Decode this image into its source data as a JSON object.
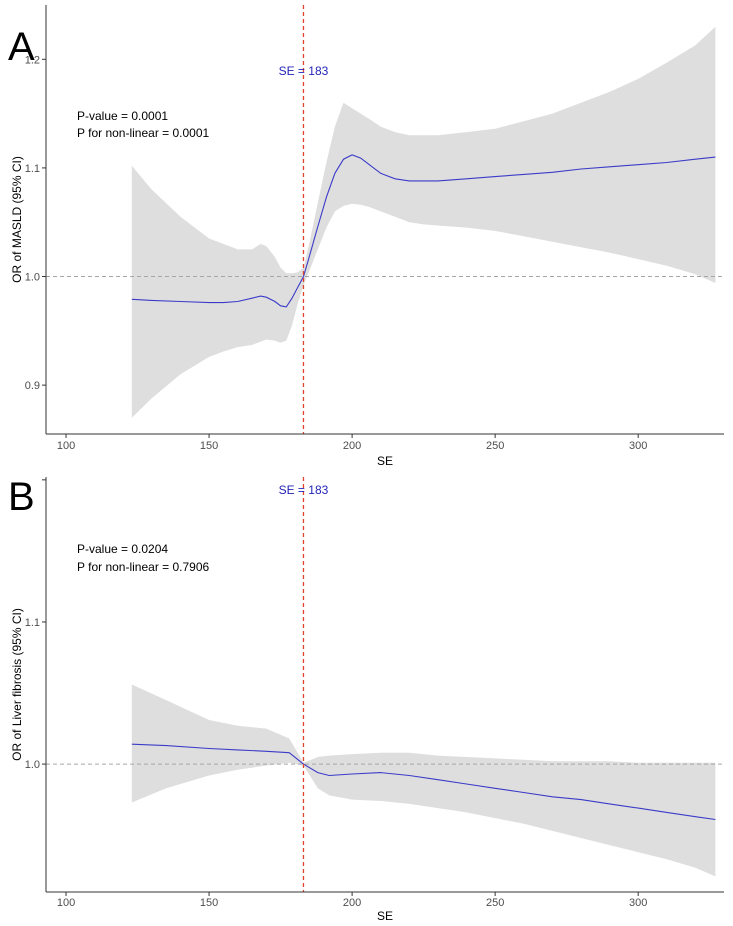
{
  "chart_data": [
    {
      "panel_label": "A",
      "type": "line",
      "xlabel": "SE",
      "ylabel": "OR of MASLD (95% CI)",
      "xlim": [
        93,
        330
      ],
      "ylim": [
        0.855,
        1.25
      ],
      "x_ticks": [
        100,
        150,
        200,
        250,
        300
      ],
      "y_ticks": [
        0.9,
        1.0,
        1.1,
        1.2
      ],
      "x_tick_labels": [
        "100",
        "150",
        "200",
        "250",
        "300"
      ],
      "y_tick_labels": [
        "0.9",
        "1.0",
        "1.1",
        "1.2"
      ],
      "reference_y": 1.0,
      "cutoff": {
        "x": 183,
        "label": "SE = 183"
      },
      "annotations": {
        "p_value": "P-value = 0.0001",
        "p_nonlinear": "P for non-linear = 0.0001"
      },
      "series": [
        {
          "name": "OR",
          "x": [
            123,
            130,
            140,
            150,
            155,
            160,
            165,
            168,
            170,
            173,
            175,
            177,
            179,
            181,
            183,
            185,
            188,
            191,
            194,
            197,
            200,
            203,
            206,
            210,
            215,
            220,
            225,
            230,
            240,
            250,
            260,
            270,
            280,
            290,
            300,
            310,
            320,
            327
          ],
          "y": [
            0.979,
            0.978,
            0.977,
            0.976,
            0.976,
            0.977,
            0.98,
            0.982,
            0.981,
            0.977,
            0.973,
            0.972,
            0.98,
            0.99,
            1.0,
            1.018,
            1.046,
            1.073,
            1.095,
            1.108,
            1.112,
            1.109,
            1.103,
            1.095,
            1.09,
            1.088,
            1.088,
            1.088,
            1.09,
            1.092,
            1.094,
            1.096,
            1.099,
            1.101,
            1.103,
            1.105,
            1.108,
            1.11
          ],
          "lower": [
            0.87,
            0.888,
            0.91,
            0.926,
            0.931,
            0.935,
            0.937,
            0.94,
            0.942,
            0.941,
            0.939,
            0.941,
            0.955,
            0.975,
            0.992,
            1.005,
            1.025,
            1.045,
            1.06,
            1.065,
            1.067,
            1.066,
            1.064,
            1.06,
            1.055,
            1.05,
            1.048,
            1.047,
            1.045,
            1.042,
            1.037,
            1.032,
            1.027,
            1.022,
            1.016,
            1.01,
            1.002,
            0.994
          ],
          "upper": [
            1.102,
            1.08,
            1.055,
            1.035,
            1.03,
            1.025,
            1.025,
            1.03,
            1.028,
            1.018,
            1.008,
            1.003,
            1.003,
            1.004,
            1.008,
            1.03,
            1.068,
            1.105,
            1.138,
            1.16,
            1.155,
            1.15,
            1.145,
            1.138,
            1.133,
            1.13,
            1.13,
            1.13,
            1.133,
            1.136,
            1.143,
            1.15,
            1.16,
            1.17,
            1.182,
            1.197,
            1.213,
            1.23
          ]
        }
      ]
    },
    {
      "panel_label": "B",
      "type": "line",
      "xlabel": "SE",
      "ylabel": "OR of Liver fibrosis (95% CI)",
      "xlim": [
        93,
        330
      ],
      "ylim": [
        0.91,
        1.202
      ],
      "x_ticks": [
        100,
        150,
        200,
        250,
        300
      ],
      "y_ticks": [
        1.0,
        1.1,
        1.2
      ],
      "x_tick_labels": [
        "100",
        "150",
        "200",
        "250",
        "300"
      ],
      "y_tick_labels": [
        "1.0",
        "1.1",
        ""
      ],
      "reference_y": 1.0,
      "cutoff": {
        "x": 183,
        "label": "SE = 183"
      },
      "annotations": {
        "p_value": "P-value = 0.0204",
        "p_nonlinear": "P for non-linear = 0.7906"
      },
      "series": [
        {
          "name": "OR",
          "x": [
            123,
            135,
            150,
            160,
            170,
            178,
            183,
            188,
            192,
            200,
            210,
            220,
            230,
            240,
            250,
            260,
            270,
            280,
            290,
            300,
            310,
            320,
            327
          ],
          "y": [
            1.014,
            1.013,
            1.011,
            1.01,
            1.009,
            1.008,
            1.0,
            0.994,
            0.992,
            0.993,
            0.994,
            0.992,
            0.989,
            0.986,
            0.983,
            0.98,
            0.977,
            0.975,
            0.972,
            0.969,
            0.966,
            0.963,
            0.961
          ],
          "lower": [
            0.973,
            0.983,
            0.992,
            0.996,
            0.999,
            1.001,
            0.999,
            0.983,
            0.978,
            0.975,
            0.974,
            0.972,
            0.969,
            0.966,
            0.962,
            0.958,
            0.953,
            0.948,
            0.943,
            0.938,
            0.933,
            0.927,
            0.921
          ],
          "upper": [
            1.056,
            1.045,
            1.031,
            1.027,
            1.025,
            1.018,
            1.001,
            1.005,
            1.006,
            1.007,
            1.008,
            1.008,
            1.006,
            1.005,
            1.004,
            1.003,
            1.002,
            1.002,
            1.002,
            1.001,
            1.001,
            1.001,
            1.001
          ]
        }
      ]
    }
  ],
  "colors": {
    "line": "#3b3bc9",
    "band": "#dedede",
    "cutoff": "#e0442c",
    "cutoff_label": "#2424b8",
    "reference": "#a6a6a6",
    "axis": "#333333"
  }
}
